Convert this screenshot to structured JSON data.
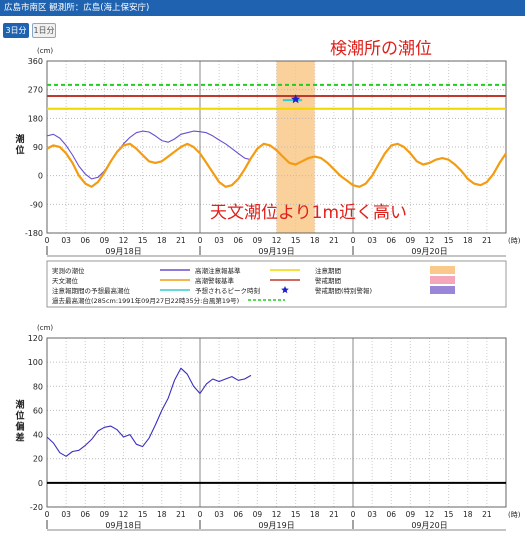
{
  "header": {
    "title": "広島市南区 観測所：広島(海上保安庁)"
  },
  "tabs": [
    {
      "label": "3日分"
    },
    {
      "label": "1日分"
    }
  ],
  "colors": {
    "header": "#1f63b0"
  },
  "chart_data": [
    {
      "type": "line",
      "title": "",
      "unit": "(cm)",
      "ylabel": "潮位",
      "xlabel": "(時)",
      "ylim": [
        -180,
        360
      ],
      "yticks": [
        -180,
        -90,
        0,
        90,
        180,
        270,
        360
      ],
      "xlim": [
        0,
        72
      ],
      "xtick_labels": [
        "0",
        "03",
        "06",
        "09",
        "12",
        "15",
        "18",
        "21",
        "0",
        "03",
        "06",
        "09",
        "12",
        "15",
        "18",
        "21",
        "0",
        "03",
        "06",
        "09",
        "12",
        "15",
        "18",
        "21"
      ],
      "date_labels": [
        {
          "text": "09月18日",
          "x": 12
        },
        {
          "text": "09月19日",
          "x": 36
        },
        {
          "text": "09月20日",
          "x": 60
        }
      ],
      "series": [
        {
          "name": "実測の潮位",
          "color": "#6a4fd0",
          "x": [
            0,
            1,
            2,
            3,
            4,
            5,
            6,
            7,
            8,
            9,
            10,
            11,
            12,
            13,
            14,
            15,
            16,
            17,
            18,
            19,
            20,
            21,
            22,
            23,
            24,
            25,
            26,
            27,
            28,
            29,
            30,
            31,
            32
          ],
          "y": [
            125,
            130,
            118,
            95,
            65,
            30,
            5,
            -10,
            -5,
            15,
            45,
            75,
            100,
            120,
            135,
            140,
            137,
            125,
            110,
            105,
            115,
            130,
            135,
            140,
            138,
            135,
            125,
            112,
            100,
            85,
            70,
            55,
            50
          ]
        },
        {
          "name": "天文潮位",
          "color": "#f39c12",
          "x": [
            0,
            1,
            2,
            3,
            4,
            5,
            6,
            7,
            8,
            9,
            10,
            11,
            12,
            13,
            14,
            15,
            16,
            17,
            18,
            19,
            20,
            21,
            22,
            23,
            24,
            25,
            26,
            27,
            28,
            29,
            30,
            31,
            32,
            33,
            34,
            35,
            36,
            37,
            38,
            39,
            40,
            41,
            42,
            43,
            44,
            45,
            46,
            47,
            48,
            49,
            50,
            51,
            52,
            53,
            54,
            55,
            56,
            57,
            58,
            59,
            60,
            61,
            62,
            63,
            64,
            65,
            66,
            67,
            68,
            69,
            70,
            71,
            72
          ],
          "y": [
            85,
            95,
            90,
            70,
            40,
            0,
            -25,
            -35,
            -20,
            10,
            45,
            75,
            95,
            100,
            85,
            65,
            45,
            40,
            45,
            60,
            75,
            90,
            100,
            90,
            70,
            40,
            10,
            -20,
            -35,
            -30,
            -10,
            20,
            55,
            85,
            100,
            95,
            80,
            60,
            40,
            35,
            45,
            55,
            60,
            55,
            40,
            20,
            0,
            -15,
            -30,
            -35,
            -25,
            0,
            35,
            70,
            95,
            100,
            90,
            70,
            45,
            35,
            40,
            50,
            55,
            50,
            35,
            15,
            -10,
            -25,
            -30,
            -20,
            5,
            40,
            70
          ]
        },
        {
          "name": "高潮注意報基準",
          "color": "#f2d600",
          "y_const": 210
        },
        {
          "name": "高潮警報基準",
          "color": "#c0392b",
          "y_const": 250
        },
        {
          "name": "過去最高潮位(285cm:1991年09月27日22時35分:台風第19号)",
          "color": "#22cc22",
          "dash": true,
          "y_const": 285
        },
        {
          "name": "注意報期間の予想最高潮位",
          "color": "#33cccc",
          "y_const": 237,
          "x_range": [
            37,
            40
          ]
        },
        {
          "name": "予想されるピーク時刻",
          "color": "#1f1fcc",
          "marker": "star",
          "x": 39,
          "y": 240
        }
      ],
      "bands": [
        {
          "name": "注意期間",
          "color": "#f9c88a",
          "x_range": [
            36,
            42
          ]
        }
      ],
      "annotations": [
        {
          "text": "検潮所の潮位",
          "color": "#e0201b"
        },
        {
          "text": "天文潮位より1m近く高い",
          "color": "#e0201b"
        }
      ],
      "legend": [
        {
          "label": "実測の潮位",
          "kind": "line",
          "color": "#6a4fd0"
        },
        {
          "label": "高潮注意報基準",
          "kind": "line",
          "color": "#f2d600"
        },
        {
          "label": "注意期間",
          "kind": "box",
          "color": "#f9c88a"
        },
        {
          "label": "天文潮位",
          "kind": "line",
          "color": "#f39c12"
        },
        {
          "label": "高潮警報基準",
          "kind": "line",
          "color": "#c0392b"
        },
        {
          "label": "警戒期間",
          "kind": "box",
          "color": "#f4a7b9"
        },
        {
          "label": "注意報期間の予想最高潮位",
          "kind": "line",
          "color": "#33cccc"
        },
        {
          "label": "予想されるピーク時刻",
          "kind": "star",
          "color": "#1f1fcc"
        },
        {
          "label": "警戒期間(特別警報)",
          "kind": "box",
          "color": "#9a86d6"
        },
        {
          "label": "過去最高潮位(285cm:1991年09月27日22時35分:台風第19号)",
          "kind": "dash",
          "color": "#22cc22"
        }
      ]
    },
    {
      "type": "line",
      "title": "",
      "unit": "(cm)",
      "ylabel": "潮位偏差",
      "xlabel": "(時)",
      "ylim": [
        -20,
        120
      ],
      "yticks": [
        -20,
        0,
        20,
        40,
        60,
        80,
        100,
        120
      ],
      "xlim": [
        0,
        72
      ],
      "xtick_labels": [
        "0",
        "03",
        "06",
        "09",
        "12",
        "15",
        "18",
        "21",
        "0",
        "03",
        "06",
        "09",
        "12",
        "15",
        "18",
        "21",
        "0",
        "03",
        "06",
        "09",
        "12",
        "15",
        "18",
        "21"
      ],
      "date_labels": [
        {
          "text": "09月18日",
          "x": 12
        },
        {
          "text": "09月19日",
          "x": 36
        },
        {
          "text": "09月20日",
          "x": 60
        }
      ],
      "series": [
        {
          "name": "潮位偏差",
          "color": "#3a2fbf",
          "x": [
            0,
            1,
            2,
            3,
            4,
            5,
            6,
            7,
            8,
            9,
            10,
            11,
            12,
            13,
            14,
            15,
            16,
            17,
            18,
            19,
            20,
            21,
            22,
            23,
            24,
            25,
            26,
            27,
            28,
            29,
            30,
            31,
            32
          ],
          "y": [
            38,
            33,
            25,
            22,
            26,
            27,
            31,
            36,
            43,
            46,
            47,
            44,
            38,
            40,
            32,
            30,
            37,
            48,
            60,
            70,
            85,
            95,
            90,
            80,
            74,
            82,
            86,
            84,
            86,
            88,
            85,
            86,
            89
          ]
        },
        {
          "name": "0",
          "color": "#000000",
          "y_const": 0
        }
      ]
    }
  ]
}
